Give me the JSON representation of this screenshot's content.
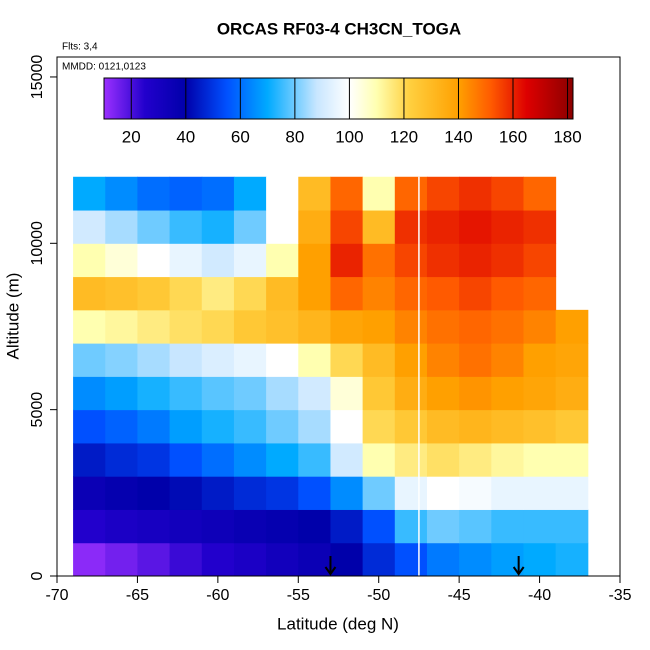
{
  "chart_data": {
    "type": "heatmap",
    "title": "ORCAS RF03-4 CH3CN_TOGA",
    "notes": [
      "Flts: 3,4",
      "MMDD: 0121,0123"
    ],
    "x_label": "Latitude (deg N)",
    "y_label": "Altitude (m)",
    "xlim": [
      -70,
      -35
    ],
    "xticks": [
      -70,
      -65,
      -60,
      -55,
      -50,
      -45,
      -40,
      -35
    ],
    "ylim": [
      0,
      15600
    ],
    "yticks": [
      0,
      5000,
      10000,
      15000
    ],
    "x_edges": [
      -69,
      -67,
      -65,
      -63,
      -61,
      -59,
      -57,
      -55,
      -53,
      -51,
      -49,
      -47,
      -45,
      -43,
      -41,
      -39,
      -37
    ],
    "y_edges": [
      0,
      1000,
      2000,
      3000,
      4000,
      5000,
      6000,
      7000,
      8000,
      9000,
      10000,
      11000,
      12000
    ],
    "z": [
      [
        12,
        15,
        18,
        22,
        25,
        28,
        32,
        35,
        40,
        48,
        55,
        62,
        65,
        68,
        70,
        72
      ],
      [
        25,
        28,
        30,
        32,
        34,
        36,
        38,
        40,
        45,
        55,
        75,
        80,
        78,
        75,
        75,
        75
      ],
      [
        35,
        38,
        40,
        42,
        45,
        48,
        50,
        55,
        65,
        80,
        95,
        100,
        98,
        95,
        95,
        95
      ],
      [
        45,
        48,
        50,
        55,
        60,
        65,
        70,
        75,
        90,
        110,
        115,
        118,
        115,
        112,
        110,
        110
      ],
      [
        55,
        58,
        62,
        68,
        72,
        75,
        80,
        85,
        100,
        120,
        125,
        130,
        132,
        130,
        128,
        125
      ],
      [
        65,
        68,
        72,
        75,
        78,
        80,
        85,
        90,
        105,
        125,
        135,
        140,
        142,
        140,
        138,
        135
      ],
      [
        80,
        82,
        85,
        88,
        92,
        95,
        100,
        110,
        120,
        130,
        140,
        145,
        148,
        145,
        140,
        138
      ],
      [
        110,
        112,
        115,
        118,
        120,
        125,
        128,
        132,
        138,
        140,
        145,
        148,
        150,
        148,
        145,
        140
      ],
      [
        130,
        128,
        125,
        120,
        115,
        120,
        130,
        140,
        150,
        145,
        150,
        152,
        155,
        152,
        150,
        null
      ],
      [
        110,
        105,
        100,
        95,
        90,
        95,
        110,
        140,
        160,
        148,
        155,
        158,
        160,
        158,
        155,
        null
      ],
      [
        90,
        85,
        80,
        75,
        72,
        80,
        100,
        135,
        155,
        130,
        158,
        160,
        162,
        160,
        158,
        null
      ],
      [
        70,
        65,
        60,
        58,
        60,
        70,
        100,
        130,
        150,
        110,
        150,
        155,
        158,
        155,
        150,
        null
      ]
    ],
    "clim": [
      10,
      182
    ],
    "cticks": [
      20,
      40,
      60,
      80,
      100,
      120,
      140,
      160,
      180
    ],
    "colorscale": [
      [
        10,
        "#9b30ff"
      ],
      [
        25,
        "#2200cc"
      ],
      [
        40,
        "#0000aa"
      ],
      [
        55,
        "#0050ff"
      ],
      [
        70,
        "#00aaff"
      ],
      [
        88,
        "#c8e6ff"
      ],
      [
        100,
        "#ffffff"
      ],
      [
        110,
        "#ffffb0"
      ],
      [
        122,
        "#ffd040"
      ],
      [
        140,
        "#ffa000"
      ],
      [
        152,
        "#ff5a00"
      ],
      [
        165,
        "#dd0000"
      ],
      [
        182,
        "#8b0000"
      ]
    ],
    "vline_x": -47.5,
    "vline_color": "#ffffff",
    "arrows_x": [
      -53,
      -41.3
    ]
  }
}
